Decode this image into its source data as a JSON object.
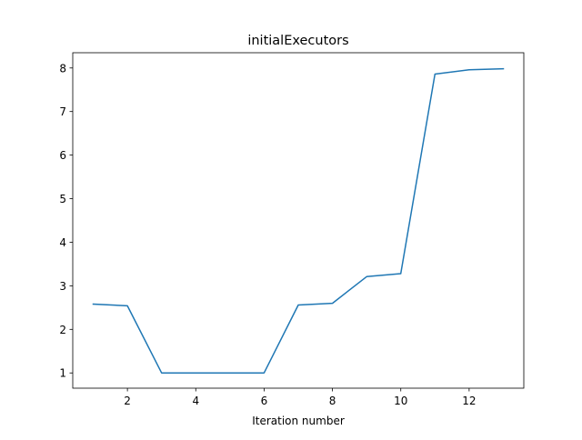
{
  "chart_data": {
    "type": "line",
    "title": "initialExecutors",
    "xlabel": "Iteration number",
    "ylabel": "",
    "xlim": [
      0.4,
      13.6
    ],
    "ylim": [
      0.65,
      8.35
    ],
    "xticks": [
      2,
      4,
      6,
      8,
      10,
      12
    ],
    "yticks": [
      1,
      2,
      3,
      4,
      5,
      6,
      7,
      8
    ],
    "grid": false,
    "legend": "none",
    "series": [
      {
        "color": "#1f77b4",
        "x": [
          1,
          2,
          3,
          4,
          5,
          6,
          7,
          8,
          9,
          10,
          11,
          12,
          13
        ],
        "y": [
          2.58,
          2.54,
          1.0,
          1.0,
          1.0,
          1.0,
          2.56,
          2.6,
          3.21,
          3.28,
          7.86,
          7.96,
          7.98
        ]
      }
    ]
  }
}
